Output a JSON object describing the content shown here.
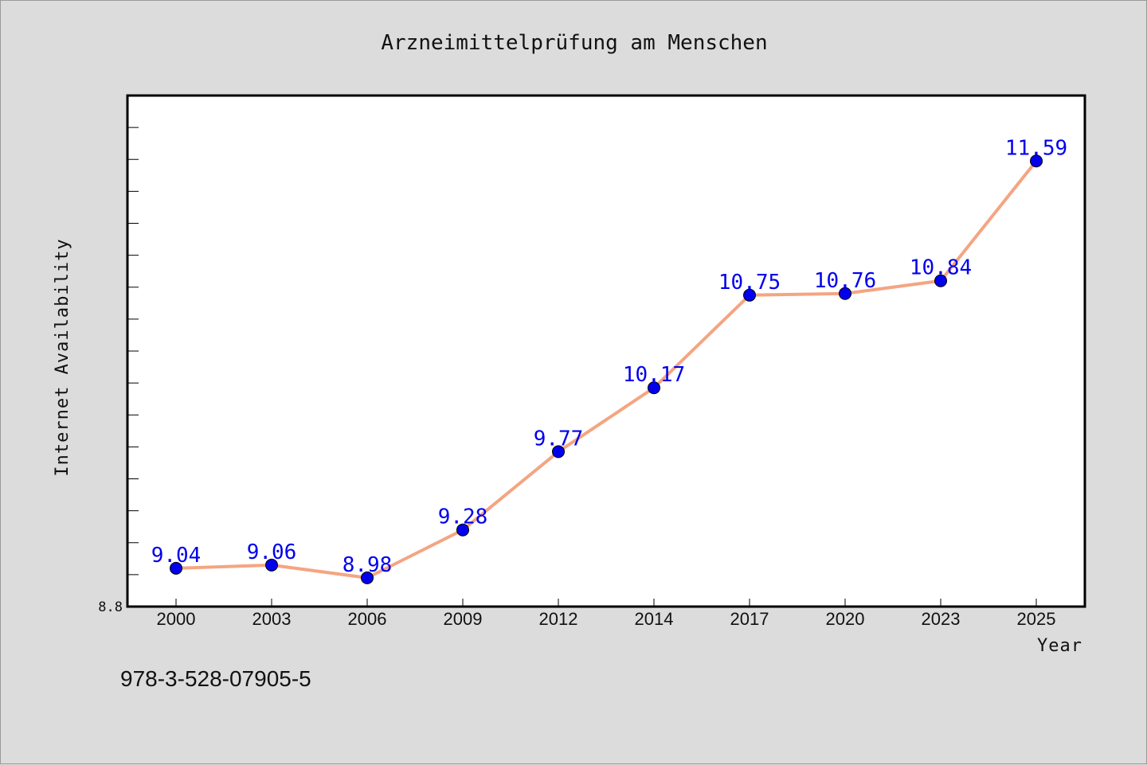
{
  "chart_data": {
    "type": "line",
    "title": "Arzneimittelprüfung am Menschen",
    "xlabel": "Year",
    "ylabel": "Internet Availability",
    "categories": [
      "2000",
      "2003",
      "2006",
      "2009",
      "2012",
      "2014",
      "2017",
      "2020",
      "2023",
      "2025"
    ],
    "series": [
      {
        "values": [
          9.04,
          9.06,
          8.98,
          9.28,
          9.77,
          10.17,
          10.75,
          10.76,
          10.84,
          11.59
        ],
        "line_color": "#f4a582",
        "marker_color": "#0000ee",
        "label_color": "#0000ee"
      }
    ],
    "ylim": [
      8.8,
      12.0
    ],
    "ytick_labels": [
      "8.8"
    ],
    "grid": false,
    "legend": "none",
    "background_color": "#dcdcdc",
    "plot_background_color": "#ffffff"
  },
  "footer": {
    "code": "978-3-528-07905-5"
  }
}
